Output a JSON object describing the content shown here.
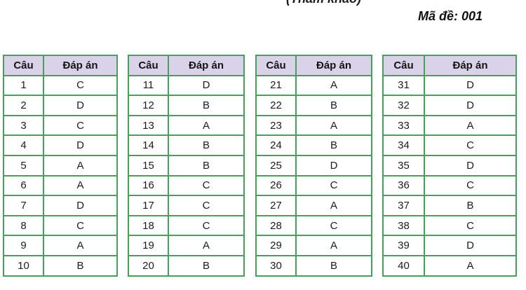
{
  "page": {
    "reference_note": "(Tham khảo)",
    "exam_code_label": "Mã đề: 001"
  },
  "table_headers": {
    "question": "Câu",
    "answer": "Đáp án"
  },
  "colors": {
    "border_green": "#46a05c",
    "header_bg": "#d9d2e9",
    "text": "#1c1c1c"
  },
  "tables": [
    {
      "rows": [
        {
          "cau": "1",
          "dapan": "C"
        },
        {
          "cau": "2",
          "dapan": "D"
        },
        {
          "cau": "3",
          "dapan": "C"
        },
        {
          "cau": "4",
          "dapan": "D"
        },
        {
          "cau": "5",
          "dapan": "A"
        },
        {
          "cau": "6",
          "dapan": "A"
        },
        {
          "cau": "7",
          "dapan": "D"
        },
        {
          "cau": "8",
          "dapan": "C"
        },
        {
          "cau": "9",
          "dapan": "A"
        },
        {
          "cau": "10",
          "dapan": "B"
        }
      ]
    },
    {
      "rows": [
        {
          "cau": "11",
          "dapan": "D"
        },
        {
          "cau": "12",
          "dapan": "B"
        },
        {
          "cau": "13",
          "dapan": "A"
        },
        {
          "cau": "14",
          "dapan": "B"
        },
        {
          "cau": "15",
          "dapan": "B"
        },
        {
          "cau": "16",
          "dapan": "C"
        },
        {
          "cau": "17",
          "dapan": "C"
        },
        {
          "cau": "18",
          "dapan": "C"
        },
        {
          "cau": "19",
          "dapan": "A"
        },
        {
          "cau": "20",
          "dapan": "B"
        }
      ]
    },
    {
      "rows": [
        {
          "cau": "21",
          "dapan": "A"
        },
        {
          "cau": "22",
          "dapan": "B"
        },
        {
          "cau": "23",
          "dapan": "A"
        },
        {
          "cau": "24",
          "dapan": "B"
        },
        {
          "cau": "25",
          "dapan": "D"
        },
        {
          "cau": "26",
          "dapan": "C"
        },
        {
          "cau": "27",
          "dapan": "A"
        },
        {
          "cau": "28",
          "dapan": "C"
        },
        {
          "cau": "29",
          "dapan": "A"
        },
        {
          "cau": "30",
          "dapan": "B"
        }
      ]
    },
    {
      "rows": [
        {
          "cau": "31",
          "dapan": "D"
        },
        {
          "cau": "32",
          "dapan": "D"
        },
        {
          "cau": "33",
          "dapan": "A"
        },
        {
          "cau": "34",
          "dapan": "C"
        },
        {
          "cau": "35",
          "dapan": "D"
        },
        {
          "cau": "36",
          "dapan": "C"
        },
        {
          "cau": "37",
          "dapan": "B"
        },
        {
          "cau": "38",
          "dapan": "C"
        },
        {
          "cau": "39",
          "dapan": "D"
        },
        {
          "cau": "40",
          "dapan": "A"
        }
      ]
    }
  ]
}
